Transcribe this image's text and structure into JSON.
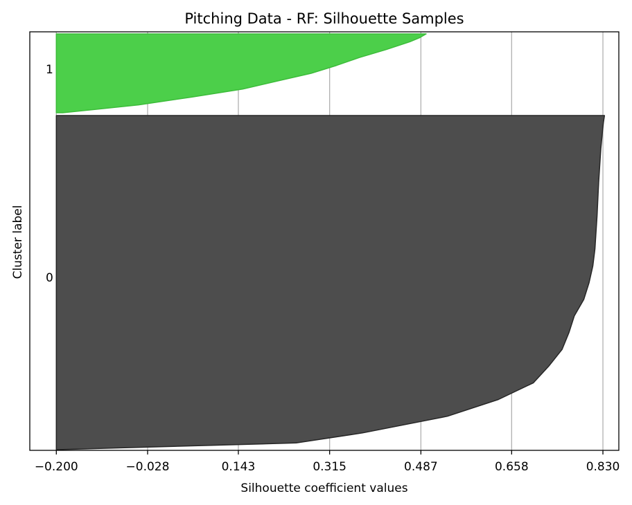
{
  "chart_data": {
    "type": "area",
    "title": "Pitching Data - RF: Silhouette Samples",
    "xlabel": "Silhouette coefficient values",
    "ylabel": "Cluster label",
    "xlim": [
      -0.25,
      0.86
    ],
    "xticks": [
      "−0.200",
      "−0.028",
      "0.143",
      "0.315",
      "0.487",
      "0.658",
      "0.830"
    ],
    "xtick_values": [
      -0.2,
      -0.028,
      0.143,
      0.315,
      0.487,
      0.658,
      0.83
    ],
    "grid": "x",
    "clusters": [
      {
        "label": "0",
        "color": "#4d4d4d",
        "edge_color": "#262626",
        "profile": [
          [
            0.0,
            0.833
          ],
          [
            0.02,
            0.831
          ],
          [
            0.05,
            0.829
          ],
          [
            0.1,
            0.826
          ],
          [
            0.2,
            0.822
          ],
          [
            0.3,
            0.819
          ],
          [
            0.4,
            0.815
          ],
          [
            0.45,
            0.811
          ],
          [
            0.5,
            0.804
          ],
          [
            0.55,
            0.794
          ],
          [
            0.6,
            0.776
          ],
          [
            0.62,
            0.772
          ],
          [
            0.65,
            0.766
          ],
          [
            0.7,
            0.753
          ],
          [
            0.75,
            0.728
          ],
          [
            0.8,
            0.699
          ],
          [
            0.85,
            0.633
          ],
          [
            0.9,
            0.537
          ],
          [
            0.95,
            0.377
          ],
          [
            0.98,
            0.252
          ],
          [
            1.0,
            -0.2
          ]
        ]
      },
      {
        "label": "1",
        "color": "#4ccf4a",
        "edge_color": "#3cbc3a",
        "profile": [
          [
            0.0,
            0.497
          ],
          [
            0.05,
            0.484
          ],
          [
            0.1,
            0.466
          ],
          [
            0.2,
            0.421
          ],
          [
            0.3,
            0.371
          ],
          [
            0.4,
            0.328
          ],
          [
            0.5,
            0.28
          ],
          [
            0.6,
            0.215
          ],
          [
            0.7,
            0.151
          ],
          [
            0.8,
            0.056
          ],
          [
            0.9,
            -0.045
          ],
          [
            1.0,
            -0.188
          ]
        ]
      }
    ]
  }
}
